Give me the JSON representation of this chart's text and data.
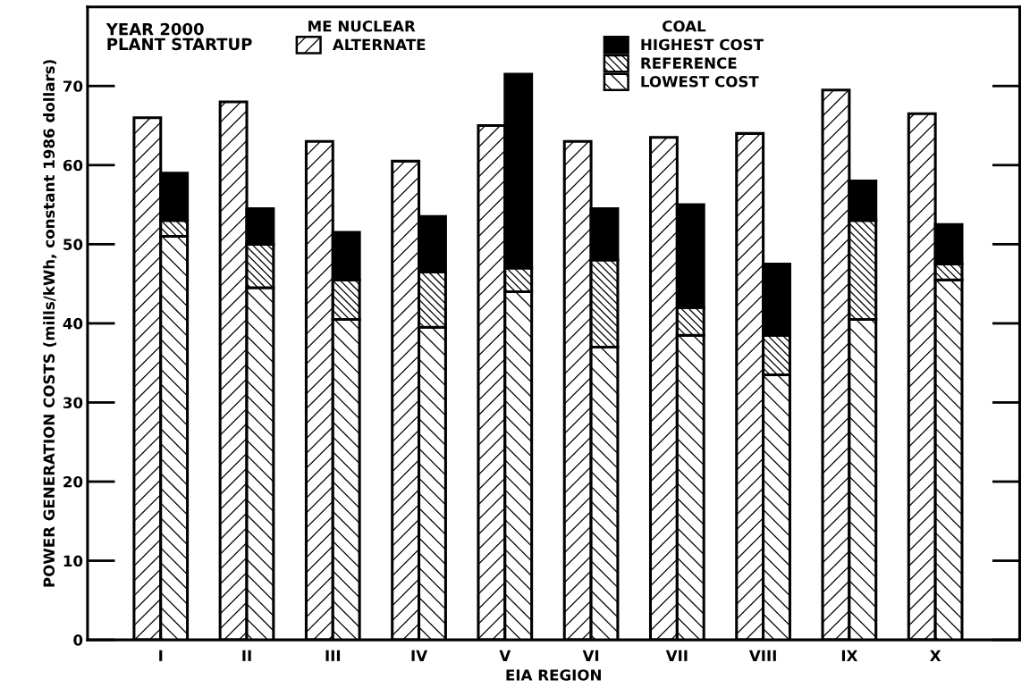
{
  "chart_data": [
    {
      "type": "bar",
      "categories": [
        "I",
        "II",
        "III",
        "IV",
        "V",
        "VI",
        "VII",
        "VIII",
        "IX",
        "X"
      ],
      "xlabel": "EIA REGION",
      "ylabel": "POWER GENERATION COSTS (mills/kWh, constant 1986 dollars)",
      "ylim": [
        0,
        80
      ],
      "yticks": [
        0,
        10,
        20,
        30,
        40,
        50,
        60,
        70
      ],
      "legend": "top",
      "legend_title": "ME NUCLEAR",
      "annotations": [
        "YEAR 2000\nPLANT STARTUP"
      ],
      "series": [
        {
          "name": "ALTERNATE",
          "color": "#000000",
          "values": [
            66,
            68,
            63,
            60.5,
            65,
            63,
            63.5,
            64,
            69.5,
            66.5
          ]
        }
      ]
    },
    {
      "type": "bar",
      "stacked": true,
      "categories": [
        null,
        null,
        null,
        null,
        null,
        null,
        null,
        null,
        null,
        null
      ],
      "ylim": [
        0,
        80
      ],
      "yticks": [
        0,
        10,
        20,
        30,
        40,
        50,
        60,
        70
      ],
      "tick_labels": false,
      "legend": "top right",
      "legend_title": "COAL",
      "series": [
        {
          "name": "LOWEST COST",
          "color": "#000000",
          "values": [
            51,
            44.5,
            40.5,
            39.5,
            44,
            37,
            38.5,
            33.5,
            40.5,
            45.5
          ]
        },
        {
          "name": "REFERENCE",
          "color": "#000000",
          "values": [
            2,
            5.5,
            5,
            7,
            3,
            11,
            3.5,
            5,
            12.5,
            2
          ]
        },
        {
          "name": "HIGHEST COST",
          "color": "#000000",
          "values": [
            6,
            4.5,
            6,
            7,
            24.5,
            6.5,
            13,
            9,
            5,
            5
          ]
        }
      ]
    }
  ]
}
